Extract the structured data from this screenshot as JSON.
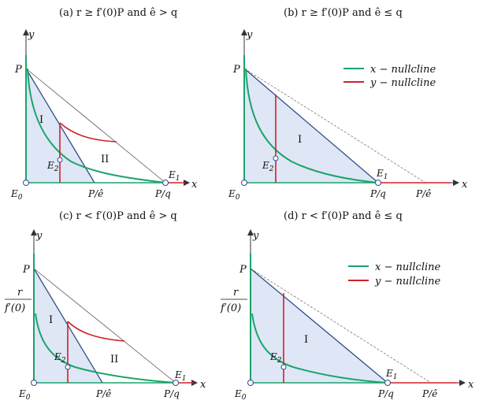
{
  "panels": {
    "a": {
      "title": "(a)  r ≥ f′(0)P and ê > q"
    },
    "b": {
      "title": "(b)  r ≥ f′(0)P and ê ≤ q"
    },
    "c": {
      "title": "(c)  r < f′(0)P and ê > q"
    },
    "d": {
      "title": "(d)  r < f′(0)P and ê ≤ q"
    }
  },
  "labels": {
    "y": "y",
    "x": "x",
    "P": "P",
    "E0": "E",
    "E0_sub": "0",
    "E1": "E",
    "E1_sub": "1",
    "E2": "E",
    "E2_sub": "2",
    "P_over_q": "P/q",
    "P_over_e": "P/ê",
    "region_I": "I",
    "region_II": "II",
    "r_num": "r",
    "r_den": "f′(0)"
  },
  "legend": {
    "x_nullcline": "x − nullcline",
    "y_nullcline": "y − nullcline"
  },
  "colors": {
    "x_nullcline": "#1aa36b",
    "y_nullcline": "#d0202a",
    "region_fill": "#dfe6f5",
    "region_edge": "#2f4f8a"
  }
}
